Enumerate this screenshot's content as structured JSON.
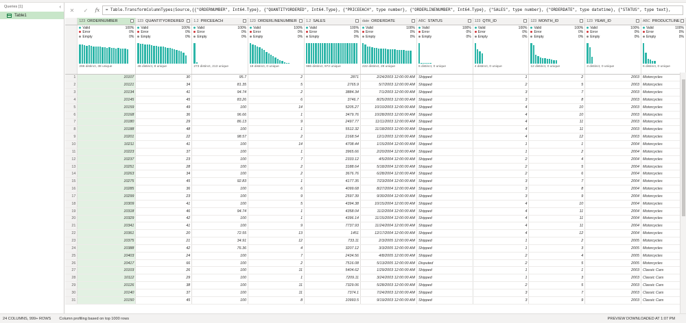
{
  "queries": {
    "header": "Queries [1]",
    "items": [
      {
        "label": "Table1"
      }
    ]
  },
  "formula": {
    "text": "= Table.TransformColumnTypes(Source,{{\"ORDERNUMBER\", Int64.Type}, {\"QUANTITYORDERED\", Int64.Type}, {\"PRICEEACH\", type number}, {\"ORDERLINENUMBER\", Int64.Type}, {\"SALES\", type number}, {\"ORDERDATE\", type datetime}, {\"STATUS\", type text},"
  },
  "columns": [
    {
      "name": "ORDERNUMBER",
      "type": "123",
      "align": "num",
      "valid": "100%",
      "error": "0%",
      "empty": "0%",
      "dist": "266 distinct, 38 unique",
      "bars": [
        0.95,
        0.92,
        0.9,
        0.88,
        0.9,
        0.86,
        0.85,
        0.84,
        0.85,
        0.82,
        0.8,
        0.81,
        0.78,
        0.8,
        0.77,
        0.76,
        0.75,
        0.77,
        0.74,
        0.72,
        0.73,
        0.7
      ]
    },
    {
      "name": "QUANTITYORDERED",
      "type": "123",
      "align": "num",
      "valid": "100%",
      "error": "0%",
      "empty": "0%",
      "dist": "46 distinct, 8 unique",
      "bars": [
        1.0,
        0.98,
        0.96,
        0.95,
        0.93,
        0.92,
        0.9,
        0.88,
        0.86,
        0.85,
        0.83,
        0.82,
        0.8,
        0.78,
        0.76,
        0.74,
        0.7,
        0.68,
        0.65,
        0.6,
        0.52,
        0.4
      ]
    },
    {
      "name": "PRICEEACH",
      "type": "1.2",
      "align": "num",
      "valid": "100%",
      "error": "0%",
      "empty": "0%",
      "dist": "273 distinct, 213 unique",
      "bars": [
        1.0,
        0.08
      ]
    },
    {
      "name": "ORDERLINENUMBER",
      "type": "123",
      "align": "num",
      "valid": "100%",
      "error": "0%",
      "empty": "0%",
      "dist": "18 distinct, 0 unique",
      "bars": [
        1.0,
        0.95,
        0.9,
        0.85,
        0.8,
        0.72,
        0.66,
        0.58,
        0.5,
        0.44,
        0.38,
        0.3,
        0.24,
        0.18,
        0.12,
        0.08,
        0.05,
        0.03
      ]
    },
    {
      "name": "SALES",
      "type": "1.2",
      "align": "num",
      "valid": "100%",
      "error": "0%",
      "empty": "0%",
      "dist": "986 distinct, 972 unique",
      "bars": [
        1.0,
        1.0,
        1.0,
        1.0,
        1.0,
        1.0,
        1.0,
        1.0,
        1.0,
        1.0,
        1.0,
        1.0,
        1.0,
        1.0,
        1.0,
        1.0,
        1.0,
        1.0,
        1.0,
        1.0,
        1.0,
        1.0,
        1.0
      ]
    },
    {
      "name": "ORDERDATE",
      "type": "date",
      "align": "num",
      "valid": "100%",
      "error": "0%",
      "empty": "0%",
      "dist": "222 distinct, 28 unique",
      "bars": [
        1.0,
        0.95,
        0.85,
        0.82,
        0.8,
        0.78,
        0.76,
        0.74,
        0.73,
        0.72,
        0.72,
        0.71,
        0.7,
        0.7,
        0.69,
        0.68,
        0.68,
        0.67,
        0.66,
        0.65,
        0.64,
        0.63
      ]
    },
    {
      "name": "STATUS",
      "type": "ABC",
      "align": "txt",
      "valid": "100%",
      "error": "0%",
      "empty": "0%",
      "dist": "6 distinct, 0 unique",
      "bars": [
        1.0,
        0.04,
        0.03,
        0.03,
        0.02,
        0.02
      ]
    },
    {
      "name": "QTR_ID",
      "type": "123",
      "align": "num",
      "valid": "100%",
      "error": "0%",
      "empty": "0%",
      "dist": "4 distinct, 0 unique",
      "bars": [
        1.0,
        0.7,
        0.6,
        0.5
      ]
    },
    {
      "name": "MONTH_ID",
      "type": "123",
      "align": "num",
      "valid": "100%",
      "error": "0%",
      "empty": "0%",
      "dist": "12 distinct, 0 unique",
      "bars": [
        1.0,
        0.9,
        0.45,
        0.38,
        0.3,
        0.28,
        0.26,
        0.24,
        0.22,
        0.2,
        0.18,
        0.16
      ]
    },
    {
      "name": "YEAR_ID",
      "type": "123",
      "align": "num",
      "valid": "100%",
      "error": "0%",
      "empty": "0%",
      "dist": "3 distinct, 0 unique",
      "bars": [
        1.0,
        0.8,
        0.35
      ]
    },
    {
      "name": "PRODUCTLINE",
      "type": "ABC",
      "align": "txt",
      "valid": "100%",
      "error": "0%",
      "empty": "0%",
      "dist": "6 distinct, 0 unique",
      "bars": [
        1.0,
        0.55,
        0.25,
        0.2,
        0.15,
        0.12
      ]
    }
  ],
  "profile_labels": {
    "valid": "Valid",
    "error": "Error",
    "empty": "Empty"
  },
  "rows": [
    [
      "10107",
      "30",
      "95.7",
      "2",
      "2871",
      "2/24/2003 12:00:00 AM",
      "Shipped",
      "1",
      "2",
      "2003",
      "Motorcycles"
    ],
    [
      "10121",
      "34",
      "81.35",
      "5",
      "2765.9",
      "5/7/2003 12:00:00 AM",
      "Shipped",
      "2",
      "5",
      "2003",
      "Motorcycles"
    ],
    [
      "10134",
      "41",
      "94.74",
      "2",
      "3884.34",
      "7/1/2003 12:00:00 AM",
      "Shipped",
      "3",
      "7",
      "2003",
      "Motorcycles"
    ],
    [
      "10145",
      "45",
      "83.26",
      "6",
      "3746.7",
      "8/25/2003 12:00:00 AM",
      "Shipped",
      "3",
      "8",
      "2003",
      "Motorcycles"
    ],
    [
      "10159",
      "49",
      "100",
      "14",
      "5205.27",
      "10/10/2003 12:00:00 AM",
      "Shipped",
      "4",
      "10",
      "2003",
      "Motorcycles"
    ],
    [
      "10168",
      "36",
      "96.66",
      "1",
      "3479.76",
      "10/28/2003 12:00:00 AM",
      "Shipped",
      "4",
      "10",
      "2003",
      "Motorcycles"
    ],
    [
      "10180",
      "29",
      "86.13",
      "9",
      "2497.77",
      "11/11/2003 12:00:00 AM",
      "Shipped",
      "4",
      "11",
      "2003",
      "Motorcycles"
    ],
    [
      "10188",
      "48",
      "100",
      "1",
      "5512.32",
      "11/18/2003 12:00:00 AM",
      "Shipped",
      "4",
      "11",
      "2003",
      "Motorcycles"
    ],
    [
      "10201",
      "22",
      "98.57",
      "2",
      "2168.54",
      "12/1/2003 12:00:00 AM",
      "Shipped",
      "4",
      "12",
      "2003",
      "Motorcycles"
    ],
    [
      "10211",
      "41",
      "100",
      "14",
      "4708.44",
      "1/15/2004 12:00:00 AM",
      "Shipped",
      "1",
      "1",
      "2004",
      "Motorcycles"
    ],
    [
      "10223",
      "37",
      "100",
      "1",
      "3965.66",
      "2/20/2004 12:00:00 AM",
      "Shipped",
      "1",
      "2",
      "2004",
      "Motorcycles"
    ],
    [
      "10237",
      "23",
      "100",
      "7",
      "2333.12",
      "4/5/2004 12:00:00 AM",
      "Shipped",
      "2",
      "4",
      "2004",
      "Motorcycles"
    ],
    [
      "10251",
      "28",
      "100",
      "2",
      "3188.64",
      "5/18/2004 12:00:00 AM",
      "Shipped",
      "2",
      "5",
      "2004",
      "Motorcycles"
    ],
    [
      "10263",
      "34",
      "100",
      "2",
      "3676.76",
      "6/28/2004 12:00:00 AM",
      "Shipped",
      "2",
      "6",
      "2004",
      "Motorcycles"
    ],
    [
      "10275",
      "45",
      "92.83",
      "1",
      "4177.35",
      "7/23/2004 12:00:00 AM",
      "Shipped",
      "3",
      "7",
      "2004",
      "Motorcycles"
    ],
    [
      "10285",
      "36",
      "100",
      "6",
      "4099.68",
      "8/27/2004 12:00:00 AM",
      "Shipped",
      "3",
      "8",
      "2004",
      "Motorcycles"
    ],
    [
      "10299",
      "23",
      "100",
      "9",
      "2597.39",
      "9/30/2004 12:00:00 AM",
      "Shipped",
      "3",
      "9",
      "2004",
      "Motorcycles"
    ],
    [
      "10309",
      "41",
      "100",
      "5",
      "4394.38",
      "10/15/2004 12:00:00 AM",
      "Shipped",
      "4",
      "10",
      "2004",
      "Motorcycles"
    ],
    [
      "10318",
      "46",
      "94.74",
      "1",
      "4358.04",
      "11/2/2004 12:00:00 AM",
      "Shipped",
      "4",
      "11",
      "2004",
      "Motorcycles"
    ],
    [
      "10329",
      "42",
      "100",
      "1",
      "4396.14",
      "11/15/2004 12:00:00 AM",
      "Shipped",
      "4",
      "11",
      "2004",
      "Motorcycles"
    ],
    [
      "10341",
      "41",
      "100",
      "9",
      "7737.93",
      "11/24/2004 12:00:00 AM",
      "Shipped",
      "4",
      "11",
      "2004",
      "Motorcycles"
    ],
    [
      "10361",
      "20",
      "72.55",
      "13",
      "1451",
      "12/17/2004 12:00:00 AM",
      "Shipped",
      "4",
      "12",
      "2004",
      "Motorcycles"
    ],
    [
      "10375",
      "21",
      "34.91",
      "12",
      "733.11",
      "2/3/2005 12:00:00 AM",
      "Shipped",
      "1",
      "2",
      "2005",
      "Motorcycles"
    ],
    [
      "10388",
      "42",
      "76.36",
      "4",
      "3207.12",
      "3/3/2005 12:00:00 AM",
      "Shipped",
      "1",
      "3",
      "2005",
      "Motorcycles"
    ],
    [
      "10403",
      "24",
      "100",
      "7",
      "2434.56",
      "4/8/2005 12:00:00 AM",
      "Shipped",
      "2",
      "4",
      "2005",
      "Motorcycles"
    ],
    [
      "10417",
      "66",
      "100",
      "2",
      "7516.08",
      "5/13/2005 12:00:00 AM",
      "Disputed",
      "2",
      "5",
      "2005",
      "Motorcycles"
    ],
    [
      "10103",
      "26",
      "100",
      "11",
      "5404.62",
      "1/29/2003 12:00:00 AM",
      "Shipped",
      "1",
      "1",
      "2003",
      "Classic Cars"
    ],
    [
      "10112",
      "29",
      "100",
      "1",
      "7209.11",
      "3/24/2003 12:00:00 AM",
      "Shipped",
      "1",
      "3",
      "2003",
      "Classic Cars"
    ],
    [
      "10126",
      "38",
      "100",
      "11",
      "7329.06",
      "5/28/2003 12:00:00 AM",
      "Shipped",
      "2",
      "5",
      "2003",
      "Classic Cars"
    ],
    [
      "10140",
      "37",
      "100",
      "11",
      "7374.1",
      "7/24/2003 12:00:00 AM",
      "Shipped",
      "3",
      "7",
      "2003",
      "Classic Cars"
    ],
    [
      "10150",
      "45",
      "100",
      "8",
      "10993.5",
      "9/19/2003 12:00:00 AM",
      "Shipped",
      "3",
      "9",
      "2003",
      "Classic Cars"
    ]
  ],
  "status": {
    "left1": "24 COLUMNS, 999+ ROWS",
    "left2": "Column profiling based on top 1000 rows",
    "right": "PREVIEW DOWNLOADED AT 1:07 PM"
  }
}
